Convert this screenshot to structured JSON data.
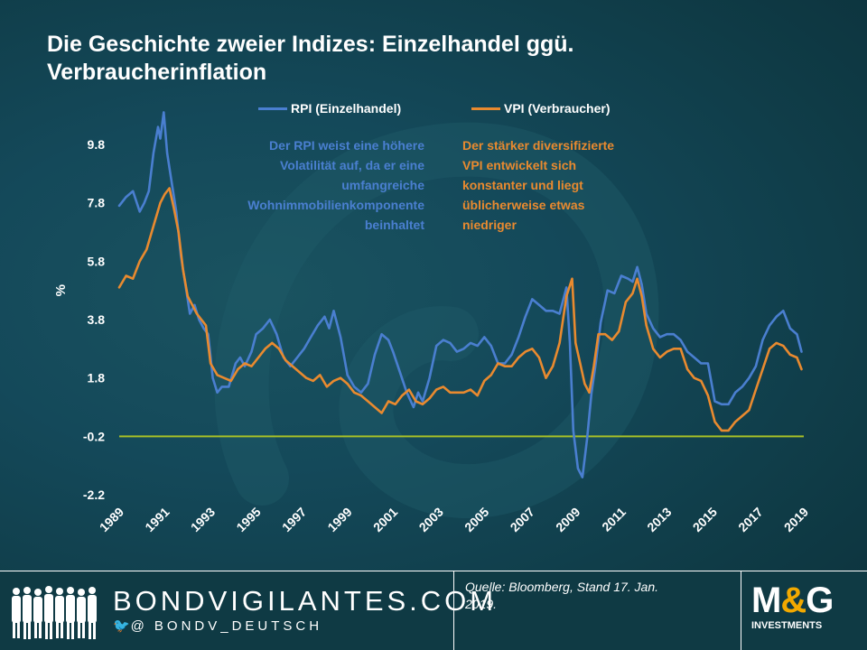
{
  "title_lines": [
    "Die Geschichte zweier Indizes: Einzelhandel ggü.",
    "Verbraucherinflation"
  ],
  "legend": [
    {
      "label": "RPI (Einzelhandel)",
      "color": "#4a7fd0"
    },
    {
      "label": "VPI (Verbraucher)",
      "color": "#e98a2f"
    }
  ],
  "annotations": {
    "rpi": [
      "Der RPI weist eine höhere",
      "Volatilität auf, da er eine",
      "umfangreiche",
      "Wohnimmobilienkomponente",
      "beinhaltet"
    ],
    "vpi": [
      "Der stärker diversifizierte",
      "VPI entwickelt sich",
      "konstanter und liegt",
      "üblicherweise etwas",
      "niedriger"
    ]
  },
  "colors": {
    "rpi": "#4a7fd0",
    "vpi": "#e98a2f",
    "zero_line": "#a8c026",
    "text": "#ffffff"
  },
  "chart_data": {
    "type": "line",
    "ylabel": "%",
    "ylim": [
      -2.2,
      9.8
    ],
    "yticks": [
      "9.8",
      "7.8",
      "5.8",
      "3.8",
      "1.8",
      "-0.2",
      "-2.2"
    ],
    "ytick_values": [
      9.8,
      7.8,
      5.8,
      3.8,
      1.8,
      -0.2,
      -2.2
    ],
    "xlim": [
      1989,
      2019
    ],
    "xticks": [
      "1989",
      "1991",
      "1993",
      "1995",
      "1997",
      "1999",
      "2001",
      "2003",
      "2005",
      "2007",
      "2009",
      "2011",
      "2013",
      "2015",
      "2017",
      "2019"
    ],
    "reference_line_y": -0.2,
    "grid": false,
    "series": [
      {
        "name": "RPI (Einzelhandel)",
        "color": "#4a7fd0",
        "x": [
          1989.0,
          1989.3,
          1989.6,
          1989.9,
          1990.1,
          1990.3,
          1990.5,
          1990.7,
          1990.8,
          1990.95,
          1991.1,
          1991.3,
          1991.5,
          1991.7,
          1991.9,
          1992.1,
          1992.3,
          1992.5,
          1992.7,
          1992.9,
          1993.1,
          1993.3,
          1993.5,
          1993.8,
          1994.1,
          1994.3,
          1994.5,
          1994.8,
          1995.0,
          1995.3,
          1995.6,
          1995.9,
          1996.2,
          1996.5,
          1996.8,
          1997.1,
          1997.4,
          1997.7,
          1998.0,
          1998.2,
          1998.4,
          1998.7,
          1999.0,
          1999.3,
          1999.6,
          1999.9,
          2000.2,
          2000.5,
          2000.8,
          2001.0,
          2001.3,
          2001.6,
          2001.9,
          2002.1,
          2002.3,
          2002.6,
          2002.9,
          2003.2,
          2003.5,
          2003.8,
          2004.1,
          2004.4,
          2004.7,
          2005.0,
          2005.3,
          2005.6,
          2005.9,
          2006.2,
          2006.5,
          2006.8,
          2007.1,
          2007.4,
          2007.7,
          2008.0,
          2008.3,
          2008.6,
          2008.75,
          2008.9,
          2009.1,
          2009.3,
          2009.5,
          2009.7,
          2009.9,
          2010.1,
          2010.4,
          2010.7,
          2011.0,
          2011.3,
          2011.5,
          2011.7,
          2011.9,
          2012.1,
          2012.4,
          2012.7,
          2013.0,
          2013.3,
          2013.6,
          2013.9,
          2014.2,
          2014.5,
          2014.8,
          2015.1,
          2015.4,
          2015.7,
          2016.0,
          2016.3,
          2016.6,
          2016.9,
          2017.2,
          2017.5,
          2017.8,
          2018.1,
          2018.4,
          2018.7,
          2018.9
        ],
        "values": [
          7.7,
          8.0,
          8.2,
          7.5,
          7.8,
          8.2,
          9.5,
          10.4,
          10.0,
          10.9,
          9.5,
          8.5,
          7.5,
          6.0,
          5.0,
          4.0,
          4.3,
          3.8,
          3.5,
          3.3,
          1.8,
          1.3,
          1.5,
          1.5,
          2.3,
          2.5,
          2.2,
          2.7,
          3.3,
          3.5,
          3.8,
          3.3,
          2.5,
          2.2,
          2.5,
          2.8,
          3.2,
          3.6,
          3.9,
          3.5,
          4.1,
          3.2,
          1.9,
          1.5,
          1.3,
          1.6,
          2.6,
          3.3,
          3.1,
          2.7,
          2.0,
          1.3,
          0.8,
          1.3,
          1.0,
          1.8,
          2.9,
          3.1,
          3.0,
          2.7,
          2.8,
          3.0,
          2.9,
          3.2,
          2.9,
          2.3,
          2.3,
          2.6,
          3.2,
          3.9,
          4.5,
          4.3,
          4.1,
          4.1,
          4.0,
          4.9,
          3.0,
          0.0,
          -1.3,
          -1.6,
          -0.3,
          1.3,
          2.4,
          3.7,
          4.8,
          4.7,
          5.3,
          5.2,
          5.1,
          5.6,
          5.0,
          4.0,
          3.5,
          3.2,
          3.3,
          3.3,
          3.1,
          2.7,
          2.5,
          2.3,
          2.3,
          1.0,
          0.9,
          0.9,
          1.3,
          1.5,
          1.8,
          2.2,
          3.1,
          3.6,
          3.9,
          4.1,
          3.5,
          3.3,
          2.7
        ]
      },
      {
        "name": "VPI (Verbraucher)",
        "color": "#e98a2f",
        "x": [
          1989.0,
          1989.3,
          1989.6,
          1989.9,
          1990.2,
          1990.5,
          1990.8,
          1991.0,
          1991.2,
          1991.4,
          1991.6,
          1991.8,
          1992.0,
          1992.2,
          1992.4,
          1992.6,
          1992.8,
          1993.0,
          1993.3,
          1993.6,
          1993.9,
          1994.2,
          1994.5,
          1994.8,
          1995.1,
          1995.4,
          1995.7,
          1996.0,
          1996.3,
          1996.6,
          1996.9,
          1997.2,
          1997.5,
          1997.8,
          1998.1,
          1998.4,
          1998.7,
          1999.0,
          1999.3,
          1999.6,
          1999.9,
          2000.2,
          2000.5,
          2000.8,
          2001.1,
          2001.4,
          2001.7,
          2002.0,
          2002.3,
          2002.6,
          2002.9,
          2003.2,
          2003.5,
          2003.8,
          2004.1,
          2004.4,
          2004.7,
          2005.0,
          2005.3,
          2005.6,
          2005.9,
          2006.2,
          2006.5,
          2006.8,
          2007.1,
          2007.4,
          2007.7,
          2008.0,
          2008.3,
          2008.6,
          2008.85,
          2009.0,
          2009.2,
          2009.4,
          2009.6,
          2009.8,
          2010.0,
          2010.3,
          2010.6,
          2010.9,
          2011.2,
          2011.5,
          2011.7,
          2011.9,
          2012.1,
          2012.4,
          2012.7,
          2013.0,
          2013.3,
          2013.6,
          2013.9,
          2014.2,
          2014.5,
          2014.8,
          2015.1,
          2015.4,
          2015.7,
          2016.0,
          2016.3,
          2016.6,
          2016.9,
          2017.2,
          2017.5,
          2017.8,
          2018.1,
          2018.4,
          2018.7,
          2018.9
        ],
        "values": [
          4.9,
          5.3,
          5.2,
          5.8,
          6.2,
          7.0,
          7.8,
          8.1,
          8.3,
          7.6,
          6.8,
          5.5,
          4.6,
          4.3,
          4.0,
          3.8,
          3.6,
          2.3,
          1.9,
          1.8,
          1.7,
          2.1,
          2.3,
          2.2,
          2.5,
          2.8,
          3.0,
          2.8,
          2.4,
          2.2,
          2.0,
          1.8,
          1.7,
          1.9,
          1.5,
          1.7,
          1.8,
          1.6,
          1.3,
          1.2,
          1.0,
          0.8,
          0.6,
          1.0,
          0.9,
          1.2,
          1.4,
          1.0,
          0.9,
          1.1,
          1.4,
          1.5,
          1.3,
          1.3,
          1.3,
          1.4,
          1.2,
          1.7,
          1.9,
          2.3,
          2.2,
          2.2,
          2.5,
          2.7,
          2.8,
          2.5,
          1.8,
          2.2,
          3.0,
          4.6,
          5.2,
          3.0,
          2.3,
          1.6,
          1.3,
          2.2,
          3.3,
          3.3,
          3.1,
          3.4,
          4.4,
          4.7,
          5.2,
          4.6,
          3.6,
          2.8,
          2.5,
          2.7,
          2.8,
          2.8,
          2.1,
          1.8,
          1.7,
          1.2,
          0.3,
          0.0,
          0.0,
          0.3,
          0.5,
          0.7,
          1.4,
          2.1,
          2.8,
          3.0,
          2.9,
          2.6,
          2.5,
          2.1
        ]
      }
    ]
  },
  "footer": {
    "brand": "BONDVIGILANTES.COM",
    "handle_icons": "🐦@",
    "handle": "BONDV_DEUTSCH",
    "source_lines": [
      "Quelle: Bloomberg, Stand 17. Jan.",
      "2019."
    ],
    "logo_mg": [
      "M",
      "&",
      "G"
    ],
    "logo_sub": "INVESTMENTS"
  }
}
